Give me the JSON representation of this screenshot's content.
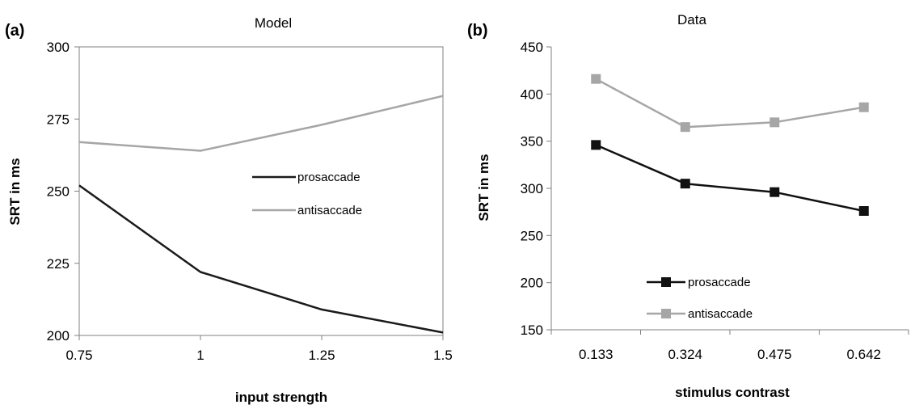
{
  "chart_data": [
    {
      "type": "line",
      "panel_label": "(a)",
      "title": "Model",
      "xlabel": "input strength",
      "ylabel": "SRT in ms",
      "x": [
        0.75,
        1,
        1.25,
        1.5
      ],
      "x_tick_labels": [
        "0.75",
        "1",
        "1.25",
        "1.5"
      ],
      "xlim": [
        0.75,
        1.5
      ],
      "ylim": [
        200,
        300
      ],
      "y_ticks": [
        200,
        225,
        250,
        275,
        300
      ],
      "grid": false,
      "legend_position": "middle-right",
      "series": [
        {
          "name": "prosaccade",
          "color": "#1a1a1a",
          "values": [
            252,
            222,
            209,
            201
          ]
        },
        {
          "name": "antisaccade",
          "color": "#a6a6a6",
          "values": [
            267,
            264,
            273,
            283
          ]
        }
      ]
    },
    {
      "type": "line",
      "panel_label": "(b)",
      "title": "Data",
      "xlabel": "stimulus contrast",
      "ylabel": "SRT in ms",
      "categories": [
        "0.133",
        "0.324",
        "0.475",
        "0.642"
      ],
      "ylim": [
        150,
        450
      ],
      "y_ticks": [
        150,
        200,
        250,
        300,
        350,
        400,
        450
      ],
      "grid": false,
      "markers": "square",
      "legend_position": "bottom-center",
      "series": [
        {
          "name": "prosaccade",
          "color": "#111111",
          "values": [
            346,
            305,
            296,
            276
          ]
        },
        {
          "name": "antisaccade",
          "color": "#a6a6a6",
          "values": [
            416,
            365,
            370,
            386
          ]
        }
      ]
    }
  ]
}
